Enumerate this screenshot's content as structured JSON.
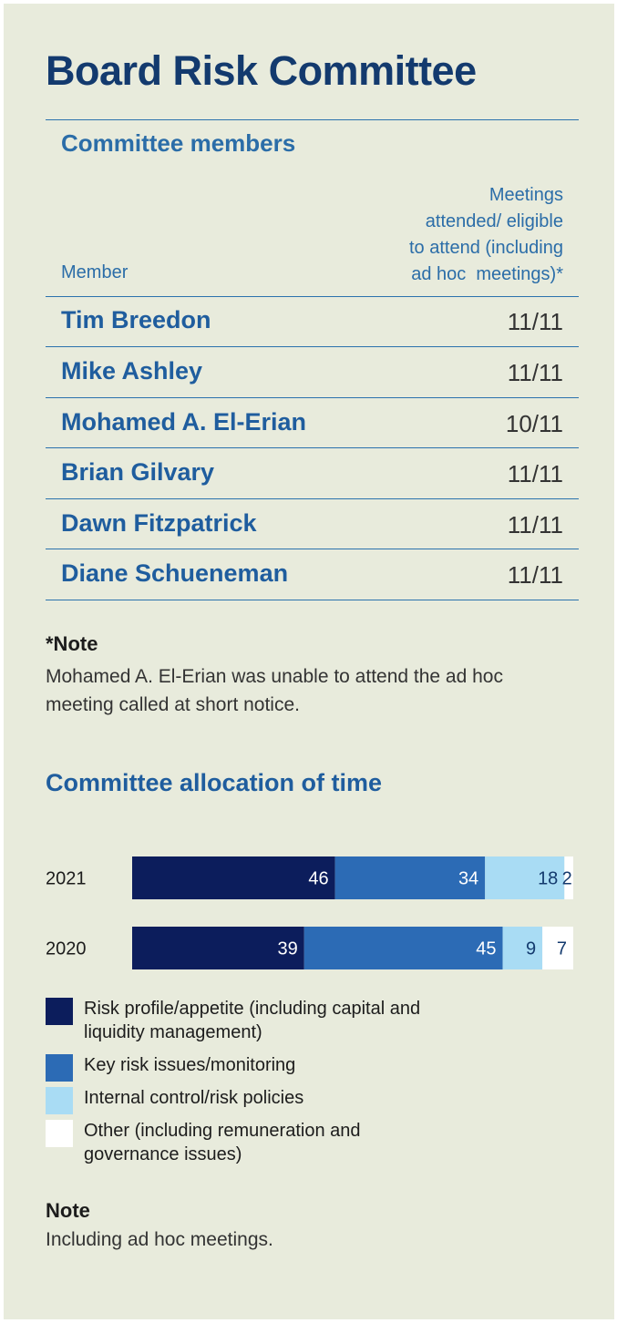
{
  "title": "Board Risk Committee",
  "members_section": {
    "heading": "Committee members",
    "member_col": "Member",
    "meetings_col": [
      "Meetings",
      "attended/ eligible",
      "to attend (including",
      "ad hoc  meetings)*"
    ],
    "rows": [
      {
        "name": "Tim Breedon",
        "value": "11/11"
      },
      {
        "name": "Mike Ashley",
        "value": "11/11"
      },
      {
        "name": "Mohamed A. El-Erian",
        "value": "10/11"
      },
      {
        "name": "Brian Gilvary",
        "value": "11/11"
      },
      {
        "name": "Dawn Fitzpatrick",
        "value": "11/11"
      },
      {
        "name": "Diane Schueneman",
        "value": "11/11"
      }
    ]
  },
  "note": {
    "heading": "*Note",
    "text": "Mohamed A. El-Erian was unable to attend the ad hoc meeting called at short notice."
  },
  "allocation_title": "Committee allocation of time",
  "chart_data": {
    "type": "bar",
    "stacked": true,
    "orientation": "horizontal",
    "title": "Committee allocation of time",
    "categories": [
      "2021",
      "2020"
    ],
    "series": [
      {
        "name": "Risk profile/appetite (including capital and liquidity management)",
        "values": [
          46,
          39
        ],
        "color": "#0c1d5c",
        "label_color": "#ffffff"
      },
      {
        "name": "Key risk issues/monitoring",
        "values": [
          34,
          45
        ],
        "color": "#2c6bb5",
        "label_color": "#ffffff"
      },
      {
        "name": "Internal control/risk policies",
        "values": [
          18,
          9
        ],
        "color": "#a9dcf4",
        "label_color": "#133a6e"
      },
      {
        "name": "Other (including remuneration and governance issues)",
        "values": [
          2,
          7
        ],
        "color": "#ffffff",
        "label_color": "#133a6e"
      }
    ],
    "xlim": [
      0,
      100
    ],
    "xlabel": "",
    "ylabel": "",
    "legend_position": "bottom"
  },
  "legend": [
    {
      "label": "Risk profile/appetite (including capital and liquidity management)",
      "color": "#0c1d5c"
    },
    {
      "label": "Key risk issues/monitoring",
      "color": "#2c6bb5"
    },
    {
      "label": "Internal control/risk policies",
      "color": "#a9dcf4"
    },
    {
      "label": "Other (including remuneration and governance issues)",
      "color": "#ffffff"
    }
  ],
  "footnote": {
    "heading": "Note",
    "text": "Including ad hoc meetings."
  }
}
